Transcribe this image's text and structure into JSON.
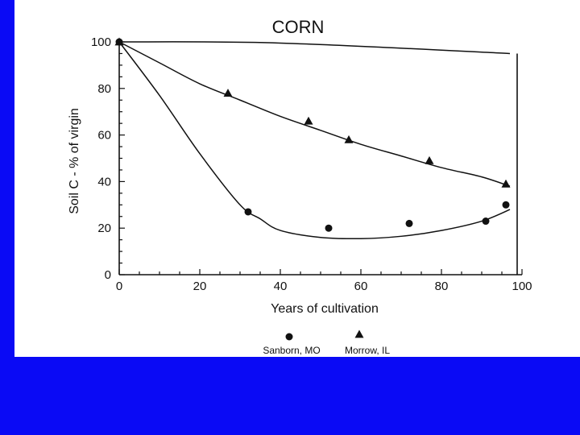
{
  "slide": {
    "background": "#0a0af5",
    "panel_color": "#ffffff"
  },
  "chart_data": {
    "type": "scatter",
    "title": "CORN",
    "xlabel": "Years of cultivation",
    "ylabel": "Soil C - % of virgin",
    "xlim": [
      0,
      100
    ],
    "ylim": [
      0,
      100
    ],
    "xticks": [
      0,
      20,
      40,
      60,
      80,
      100
    ],
    "yticks": [
      0,
      20,
      40,
      60,
      80,
      100
    ],
    "grid": false,
    "legend_position": "bottom",
    "series": [
      {
        "name": "Sanborn, MO",
        "marker": "circle",
        "points": [
          [
            0,
            100
          ],
          [
            32,
            27
          ],
          [
            52,
            20
          ],
          [
            72,
            22
          ],
          [
            91,
            23
          ],
          [
            96,
            30
          ]
        ],
        "curve": [
          [
            0,
            100
          ],
          [
            10,
            77
          ],
          [
            20,
            52
          ],
          [
            30,
            30
          ],
          [
            35,
            24
          ],
          [
            40,
            19
          ],
          [
            50,
            16
          ],
          [
            60,
            15.5
          ],
          [
            70,
            16.5
          ],
          [
            80,
            19
          ],
          [
            90,
            23
          ],
          [
            97,
            28
          ]
        ]
      },
      {
        "name": "Morrow, IL",
        "marker": "triangle",
        "points": [
          [
            0,
            100
          ],
          [
            27,
            78
          ],
          [
            47,
            66
          ],
          [
            57,
            58
          ],
          [
            77,
            49
          ],
          [
            96,
            39
          ]
        ],
        "curve": [
          [
            0,
            100
          ],
          [
            10,
            91
          ],
          [
            20,
            82
          ],
          [
            30,
            75
          ],
          [
            40,
            68
          ],
          [
            50,
            62
          ],
          [
            60,
            56
          ],
          [
            70,
            51
          ],
          [
            80,
            46
          ],
          [
            90,
            42
          ],
          [
            97,
            38
          ]
        ]
      },
      {
        "name": "",
        "marker": "none",
        "points": [],
        "curve": [
          [
            0,
            100
          ],
          [
            40,
            99.5
          ],
          [
            97,
            95
          ]
        ]
      }
    ]
  }
}
